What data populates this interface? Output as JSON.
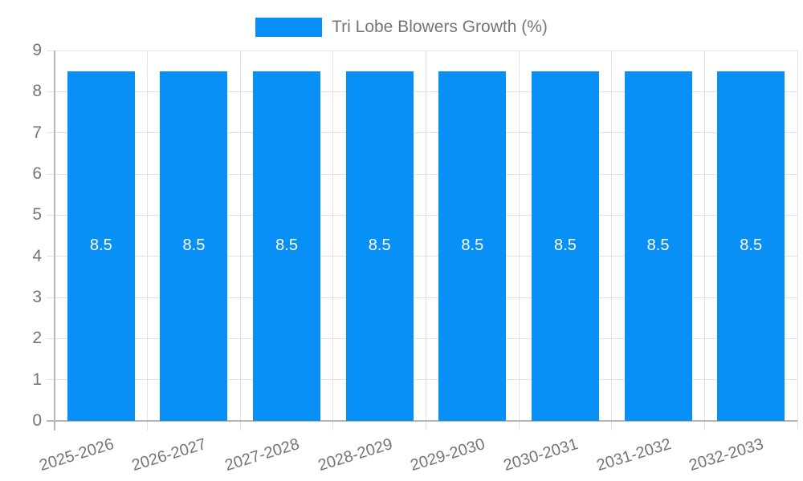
{
  "chart_data": {
    "type": "bar",
    "legend": {
      "label": "Tri Lobe Blowers Growth (%)",
      "position": "top"
    },
    "categories": [
      "2025-2026",
      "2026-2027",
      "2027-2028",
      "2028-2029",
      "2029-2030",
      "2030-2031",
      "2031-2032",
      "2032-2033"
    ],
    "series": [
      {
        "name": "Tri Lobe Blowers Growth (%)",
        "values": [
          8.5,
          8.5,
          8.5,
          8.5,
          8.5,
          8.5,
          8.5,
          8.5
        ]
      }
    ],
    "bar_value_labels": [
      "8.5",
      "8.5",
      "8.5",
      "8.5",
      "8.5",
      "8.5",
      "8.5",
      "8.5"
    ],
    "xlabel": "",
    "ylabel": "",
    "ylim": [
      0,
      9
    ],
    "ytick_step": 1,
    "ytick_labels": [
      "0",
      "1",
      "2",
      "3",
      "4",
      "5",
      "6",
      "7",
      "8",
      "9"
    ],
    "grid": "on",
    "colors": {
      "bar": "#0990f7",
      "grid": "#e2e2e2",
      "axis": "#b5b5b5",
      "text": "#757575",
      "value_label": "#ffffff",
      "background": "#ffffff"
    }
  }
}
